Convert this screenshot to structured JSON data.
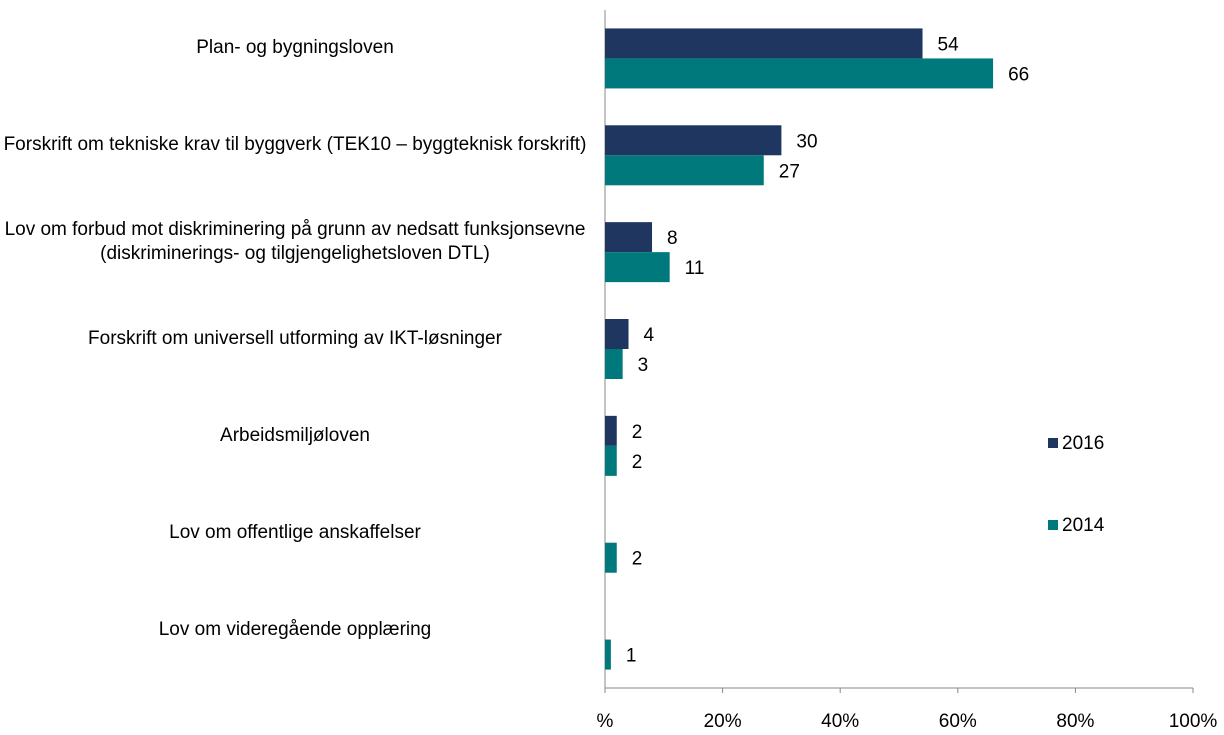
{
  "chart_data": {
    "type": "hbar",
    "categories": [
      "Plan- og bygningsloven",
      "Forskrift om tekniske krav til byggverk (TEK10 – byggteknisk forskrift)",
      "Lov om forbud mot diskriminering på grunn av nedsatt funksjonsevne (diskriminerings- og tilgjengelighetsloven DTL)",
      "Forskrift om universell utforming av IKT-løsninger",
      "Arbeidsmiljøloven",
      "Lov om offentlige anskaffelser",
      "Lov om videregående opplæring"
    ],
    "series": [
      {
        "name": "2016",
        "color": "#1f3660",
        "values": [
          54,
          30,
          8,
          4,
          2,
          null,
          null
        ]
      },
      {
        "name": "2014",
        "color": "#00797c",
        "values": [
          66,
          27,
          11,
          3,
          2,
          2,
          1
        ]
      }
    ],
    "xlim": [
      0,
      100
    ],
    "xticks": [
      {
        "value": 0,
        "label": "%"
      },
      {
        "value": 20,
        "label": "20%"
      },
      {
        "value": 40,
        "label": "40%"
      },
      {
        "value": 60,
        "label": "60%"
      },
      {
        "value": 80,
        "label": "80%"
      },
      {
        "value": 100,
        "label": "100%"
      }
    ],
    "legend": "right"
  }
}
